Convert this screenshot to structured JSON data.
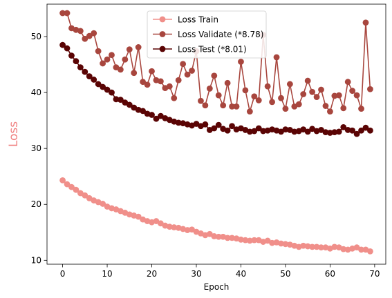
{
  "chart_data": {
    "type": "line",
    "title": "",
    "xlabel": "Epoch",
    "ylabel": "Loss",
    "xlim": [
      -3.5,
      72.5
    ],
    "ylim": [
      9.3,
      55.8
    ],
    "xticks": [
      0,
      10,
      20,
      30,
      40,
      50,
      60,
      70
    ],
    "yticks": [
      10,
      20,
      30,
      40,
      50
    ],
    "grid": false,
    "legend_position": "top-center",
    "colors": {
      "ylabel": "#f08080",
      "axis": "#000000"
    },
    "x": [
      0,
      1,
      2,
      3,
      4,
      5,
      6,
      7,
      8,
      9,
      10,
      11,
      12,
      13,
      14,
      15,
      16,
      17,
      18,
      19,
      20,
      21,
      22,
      23,
      24,
      25,
      26,
      27,
      28,
      29,
      30,
      31,
      32,
      33,
      34,
      35,
      36,
      37,
      38,
      39,
      40,
      41,
      42,
      43,
      44,
      45,
      46,
      47,
      48,
      49,
      50,
      51,
      52,
      53,
      54,
      55,
      56,
      57,
      58,
      59,
      60,
      61,
      62,
      63,
      64,
      65,
      66,
      67,
      68,
      69
    ],
    "series": [
      {
        "name": "Loss Train",
        "color": "#f08f8a",
        "values": [
          24.3,
          23.6,
          23.1,
          22.6,
          22.0,
          21.6,
          21.1,
          20.7,
          20.4,
          20.1,
          19.6,
          19.3,
          19.1,
          18.8,
          18.5,
          18.2,
          18.0,
          17.8,
          17.3,
          17.0,
          16.8,
          17.0,
          16.6,
          16.2,
          16.0,
          15.9,
          15.8,
          15.6,
          15.4,
          15.5,
          15.1,
          14.8,
          14.5,
          14.7,
          14.3,
          14.2,
          14.2,
          14.0,
          14.0,
          13.9,
          13.7,
          13.6,
          13.5,
          13.6,
          13.6,
          13.3,
          13.5,
          13.1,
          13.2,
          13.0,
          12.9,
          12.8,
          12.6,
          12.4,
          12.6,
          12.5,
          12.4,
          12.4,
          12.3,
          12.3,
          12.1,
          12.4,
          12.3,
          12.0,
          11.9,
          12.1,
          12.3,
          11.9,
          11.9,
          11.6
        ]
      },
      {
        "name": "Loss Validate (*8.78)",
        "color": "#a8463e",
        "values": [
          54.2,
          54.2,
          51.5,
          51.2,
          51.0,
          49.6,
          50.1,
          50.6,
          47.4,
          45.2,
          45.9,
          46.7,
          44.5,
          44.1,
          45.9,
          47.7,
          43.5,
          48.1,
          41.9,
          41.4,
          43.8,
          42.2,
          42.0,
          40.8,
          41.1,
          39.0,
          42.2,
          45.1,
          43.2,
          43.9,
          47.4,
          38.5,
          37.7,
          40.7,
          43.0,
          39.5,
          37.7,
          41.7,
          37.5,
          37.5,
          45.5,
          40.4,
          36.6,
          39.3,
          38.6,
          50.3,
          41.1,
          38.3,
          46.3,
          39.0,
          37.1,
          41.5,
          37.5,
          37.9,
          39.7,
          42.1,
          40.1,
          39.2,
          40.5,
          37.6,
          36.6,
          39.4,
          39.5,
          37.2,
          41.9,
          40.3,
          39.5,
          37.1,
          52.5,
          40.6
        ]
      },
      {
        "name": "Loss Test (*8.01)",
        "color": "#5a0404",
        "values": [
          48.5,
          47.9,
          46.6,
          45.6,
          44.5,
          43.7,
          42.9,
          42.3,
          41.5,
          41.0,
          40.5,
          40.0,
          38.8,
          38.7,
          38.2,
          37.8,
          37.3,
          36.9,
          36.7,
          36.2,
          36.0,
          35.3,
          35.8,
          35.4,
          35.1,
          34.8,
          34.6,
          34.5,
          34.3,
          34.1,
          34.4,
          34.0,
          34.3,
          33.3,
          33.6,
          34.2,
          33.5,
          33.2,
          34.0,
          33.4,
          33.6,
          33.3,
          33.0,
          33.1,
          33.6,
          33.1,
          33.2,
          33.4,
          33.2,
          33.0,
          33.4,
          33.3,
          33.0,
          33.1,
          33.4,
          33.0,
          33.5,
          33.1,
          33.3,
          32.9,
          32.8,
          32.9,
          33.0,
          33.8,
          33.3,
          33.2,
          32.6,
          33.2,
          33.7,
          33.2
        ]
      }
    ]
  }
}
